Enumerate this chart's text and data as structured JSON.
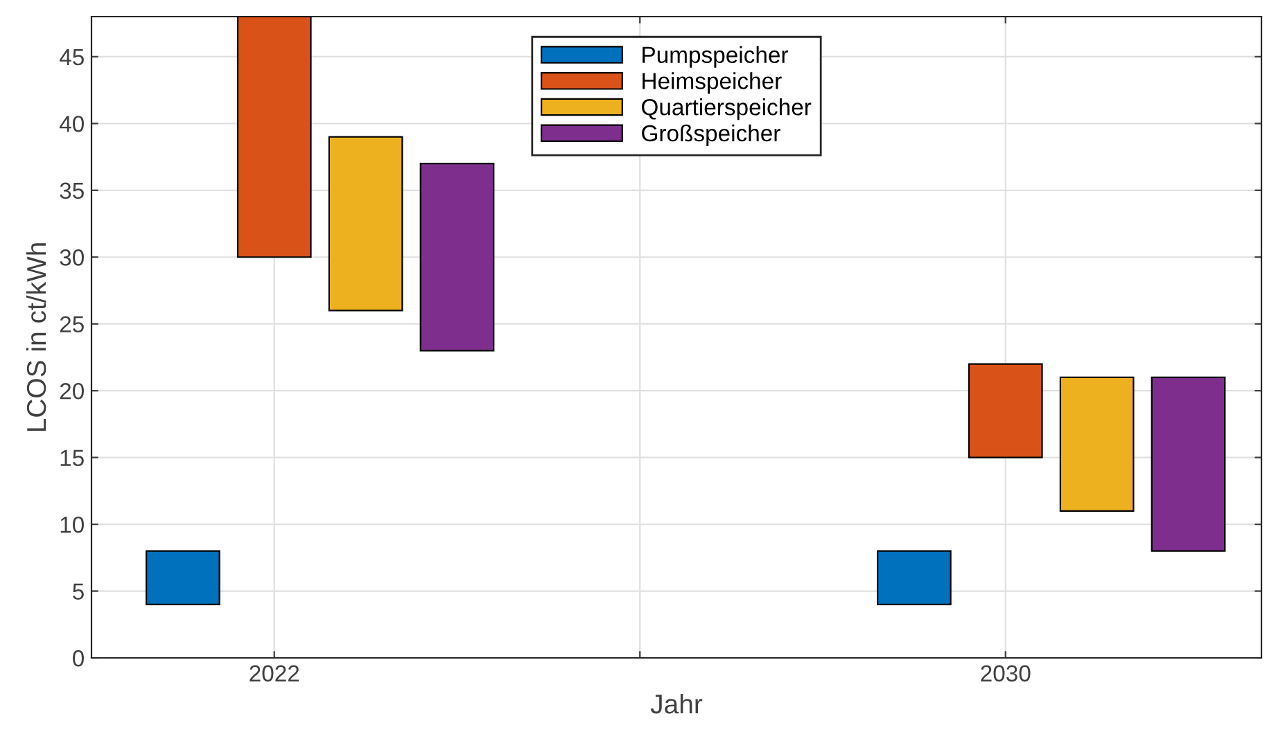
{
  "chart_data": {
    "type": "bar",
    "xlabel": "Jahr",
    "ylabel": "LCOS in ct/kWh",
    "xlim": [
      2020,
      2032.8
    ],
    "xticks": [
      2022,
      {
        "value": 2026,
        "label": null
      },
      2030
    ],
    "ylim": [
      0,
      48
    ],
    "yticks": [
      0,
      5,
      10,
      15,
      20,
      25,
      30,
      35,
      40,
      45
    ],
    "grid": true,
    "legend": "top",
    "series": [
      {
        "name": "Pumpspeicher",
        "color": "#0072bd",
        "x": [
          2021,
          2029
        ],
        "base": [
          4,
          4
        ],
        "values": [
          4,
          4
        ]
      },
      {
        "name": "Heimspeicher",
        "color": "#d95319",
        "x": [
          2022,
          2030
        ],
        "base": [
          30,
          15
        ],
        "values": [
          18,
          7
        ]
      },
      {
        "name": "Quartierspeicher",
        "color": "#edb120",
        "x": [
          2023,
          2031
        ],
        "base": [
          26,
          11
        ],
        "values": [
          13,
          10
        ]
      },
      {
        "name": "Großspeicher",
        "color": "#7e2f8e",
        "x": [
          2024,
          2032
        ],
        "base": [
          23,
          8
        ],
        "values": [
          14,
          13
        ]
      }
    ]
  }
}
